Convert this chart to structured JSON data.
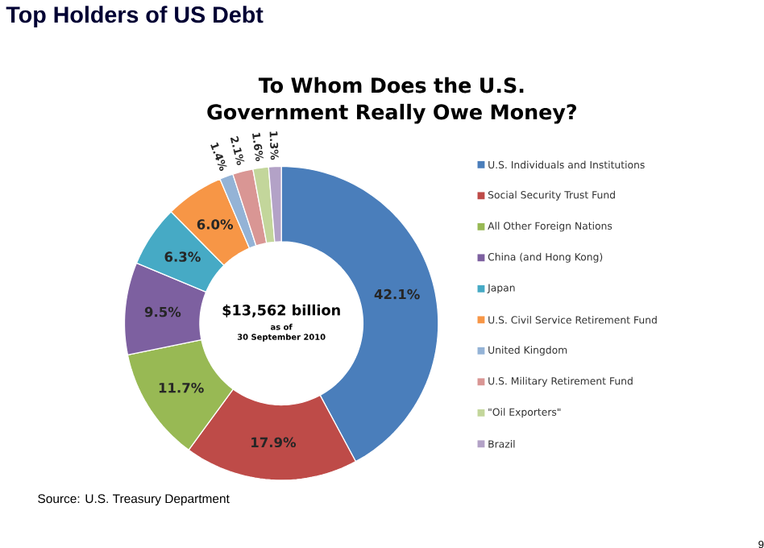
{
  "chart_data": {
    "type": "donut",
    "title": "Top Holders of US Debt",
    "subtitle": "To Whom Does the U.S. Government Really Owe Money?",
    "categories": [
      "U.S. Individuals and Institutions",
      "Social Security Trust Fund",
      "All Other Foreign Nations",
      "China (and Hong Kong)",
      "Japan",
      "U.S. Civil Service Retirement Fund",
      "United Kingdom",
      "U.S. Military Retirement Fund",
      "\"Oil Exporters\"",
      "Brazil"
    ],
    "values": [
      42.1,
      17.9,
      11.7,
      9.5,
      6.3,
      6.0,
      1.4,
      2.1,
      1.6,
      1.3
    ],
    "value_labels": [
      "42.1%",
      "17.9%",
      "11.7%",
      "9.5%",
      "6.3%",
      "6.0%",
      "1.4%",
      "2.1%",
      "1.6%",
      "1.3%"
    ],
    "colors": [
      "#4a7ebb",
      "#be4b48",
      "#98b954",
      "#7d60a0",
      "#46aac5",
      "#f79646",
      "#94b3d6",
      "#d99694",
      "#c3d69b",
      "#b3a2c7"
    ],
    "legend": "right",
    "annotations": [
      "$13,562 billion",
      "as of",
      "30 September 2010",
      "Source: U.S. Treasury Department",
      "9"
    ]
  }
}
